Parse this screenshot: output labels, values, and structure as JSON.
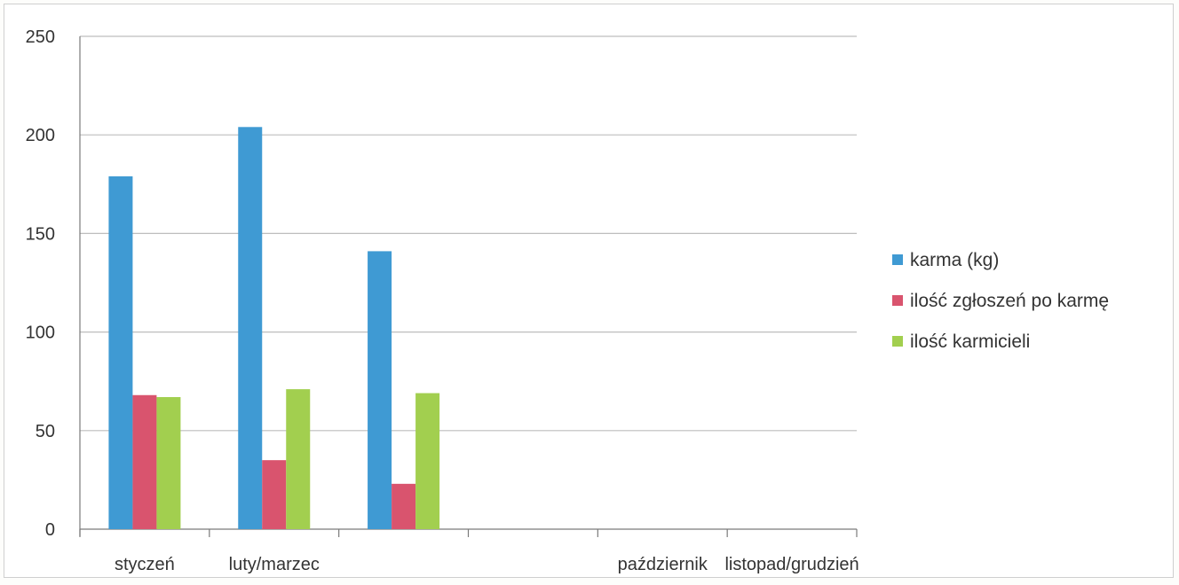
{
  "chart_data": {
    "type": "bar",
    "categories": [
      "styczeń",
      "luty/marzec",
      "",
      "",
      "październik",
      "listopad/grudzień"
    ],
    "series": [
      {
        "name": "karma (kg)",
        "color": "#3f9ad3",
        "values": [
          179,
          204,
          141,
          0,
          0,
          0
        ]
      },
      {
        "name": "ilość zgłoszeń po karmę",
        "color": "#d9546e",
        "values": [
          68,
          35,
          23,
          0,
          0,
          0
        ]
      },
      {
        "name": "ilość karmicieli",
        "color": "#a2cf4f",
        "values": [
          67,
          71,
          69,
          0,
          0,
          0
        ]
      }
    ],
    "ylim": [
      0,
      250
    ],
    "yticks": [
      0,
      50,
      100,
      150,
      200,
      250
    ],
    "grid": true,
    "legend_position": "right"
  }
}
